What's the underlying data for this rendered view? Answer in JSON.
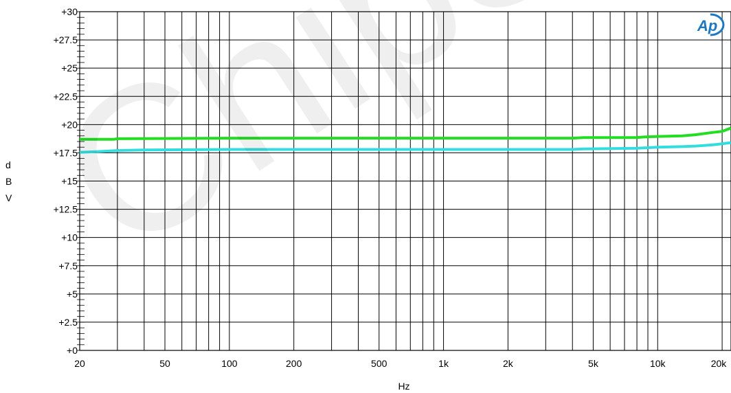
{
  "chart_data": {
    "type": "line",
    "x_scale": "log",
    "xlim": [
      20,
      22000
    ],
    "ylim": [
      0,
      30
    ],
    "xlabel": "Hz",
    "ylabel": "dBV",
    "ylabel_chars": [
      "d",
      "B",
      "V"
    ],
    "grid": true,
    "x_ticks": [
      {
        "v": 20,
        "label": "20"
      },
      {
        "v": 50,
        "label": "50"
      },
      {
        "v": 100,
        "label": "100"
      },
      {
        "v": 200,
        "label": "200"
      },
      {
        "v": 500,
        "label": "500"
      },
      {
        "v": 1000,
        "label": "1k"
      },
      {
        "v": 2000,
        "label": "2k"
      },
      {
        "v": 5000,
        "label": "5k"
      },
      {
        "v": 10000,
        "label": "10k"
      },
      {
        "v": 20000,
        "label": "20k"
      }
    ],
    "y_ticks": [
      {
        "v": 0,
        "label": "+0"
      },
      {
        "v": 2.5,
        "label": "+2.5"
      },
      {
        "v": 5,
        "label": "+5"
      },
      {
        "v": 7.5,
        "label": "+7.5"
      },
      {
        "v": 10,
        "label": "+10"
      },
      {
        "v": 12.5,
        "label": "+12.5"
      },
      {
        "v": 15,
        "label": "+15"
      },
      {
        "v": 17.5,
        "label": "+17.5"
      },
      {
        "v": 20,
        "label": "+20"
      },
      {
        "v": 22.5,
        "label": "+22.5"
      },
      {
        "v": 25,
        "label": "+25"
      },
      {
        "v": 27.5,
        "label": "+27.5"
      },
      {
        "v": 30,
        "label": "+30"
      }
    ],
    "series": [
      {
        "color": "#22dd22",
        "x": [
          20,
          29,
          30,
          100,
          1000,
          4000,
          4500,
          8000,
          8600,
          10000,
          13000,
          15000,
          18000,
          20000,
          22000
        ],
        "y": [
          18.7,
          18.7,
          18.75,
          18.8,
          18.8,
          18.8,
          18.85,
          18.85,
          18.9,
          18.95,
          19.0,
          19.1,
          19.3,
          19.4,
          19.7
        ]
      },
      {
        "color": "#33dddd",
        "x": [
          20,
          24,
          30,
          40,
          100,
          1000,
          4000,
          4500,
          8000,
          9000,
          10000,
          13000,
          15000,
          18000,
          20000,
          22000
        ],
        "y": [
          17.55,
          17.6,
          17.7,
          17.75,
          17.8,
          17.8,
          17.8,
          17.85,
          17.9,
          17.95,
          18.0,
          18.05,
          18.1,
          18.2,
          18.3,
          18.4
        ]
      }
    ]
  },
  "logo": {
    "text": "Ap",
    "color": "#1a78c8"
  },
  "watermark": {
    "text": "ChipSource",
    "color": "#000000"
  }
}
